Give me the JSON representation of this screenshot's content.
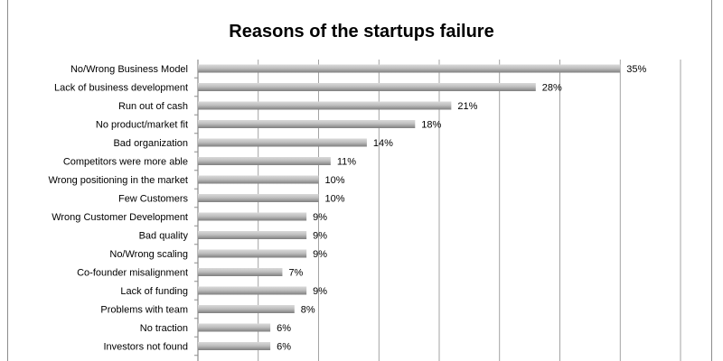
{
  "chart_data": {
    "type": "bar",
    "orientation": "horizontal",
    "title": "Reasons of the startups failure",
    "xlabel": "",
    "ylabel": "",
    "xlim": [
      0,
      40
    ],
    "grid": true,
    "legend": "none",
    "bar_color": "#a6a6a6",
    "categories": [
      "No/Wrong Business Model",
      "Lack of business development",
      "Run out of cash",
      "No product/market fit",
      "Bad organization",
      "Competitors were more able",
      "Wrong positioning in the market",
      "Few Customers",
      "Wrong  Customer Development",
      "Bad quality",
      "No/Wrong scaling",
      "Co-founder misalignment",
      "Lack of funding",
      "Problems with team",
      "No traction",
      "Investors not found"
    ],
    "values": [
      35,
      28,
      21,
      18,
      14,
      11,
      10,
      10,
      9,
      9,
      9,
      7,
      9,
      8,
      6,
      6
    ],
    "data_labels": [
      "35%",
      "28%",
      "21%",
      "18%",
      "14%",
      "11%",
      "10%",
      "10%",
      "9%",
      "9%",
      "9%",
      "7%",
      "9%",
      "8%",
      "6%",
      "6%"
    ]
  }
}
